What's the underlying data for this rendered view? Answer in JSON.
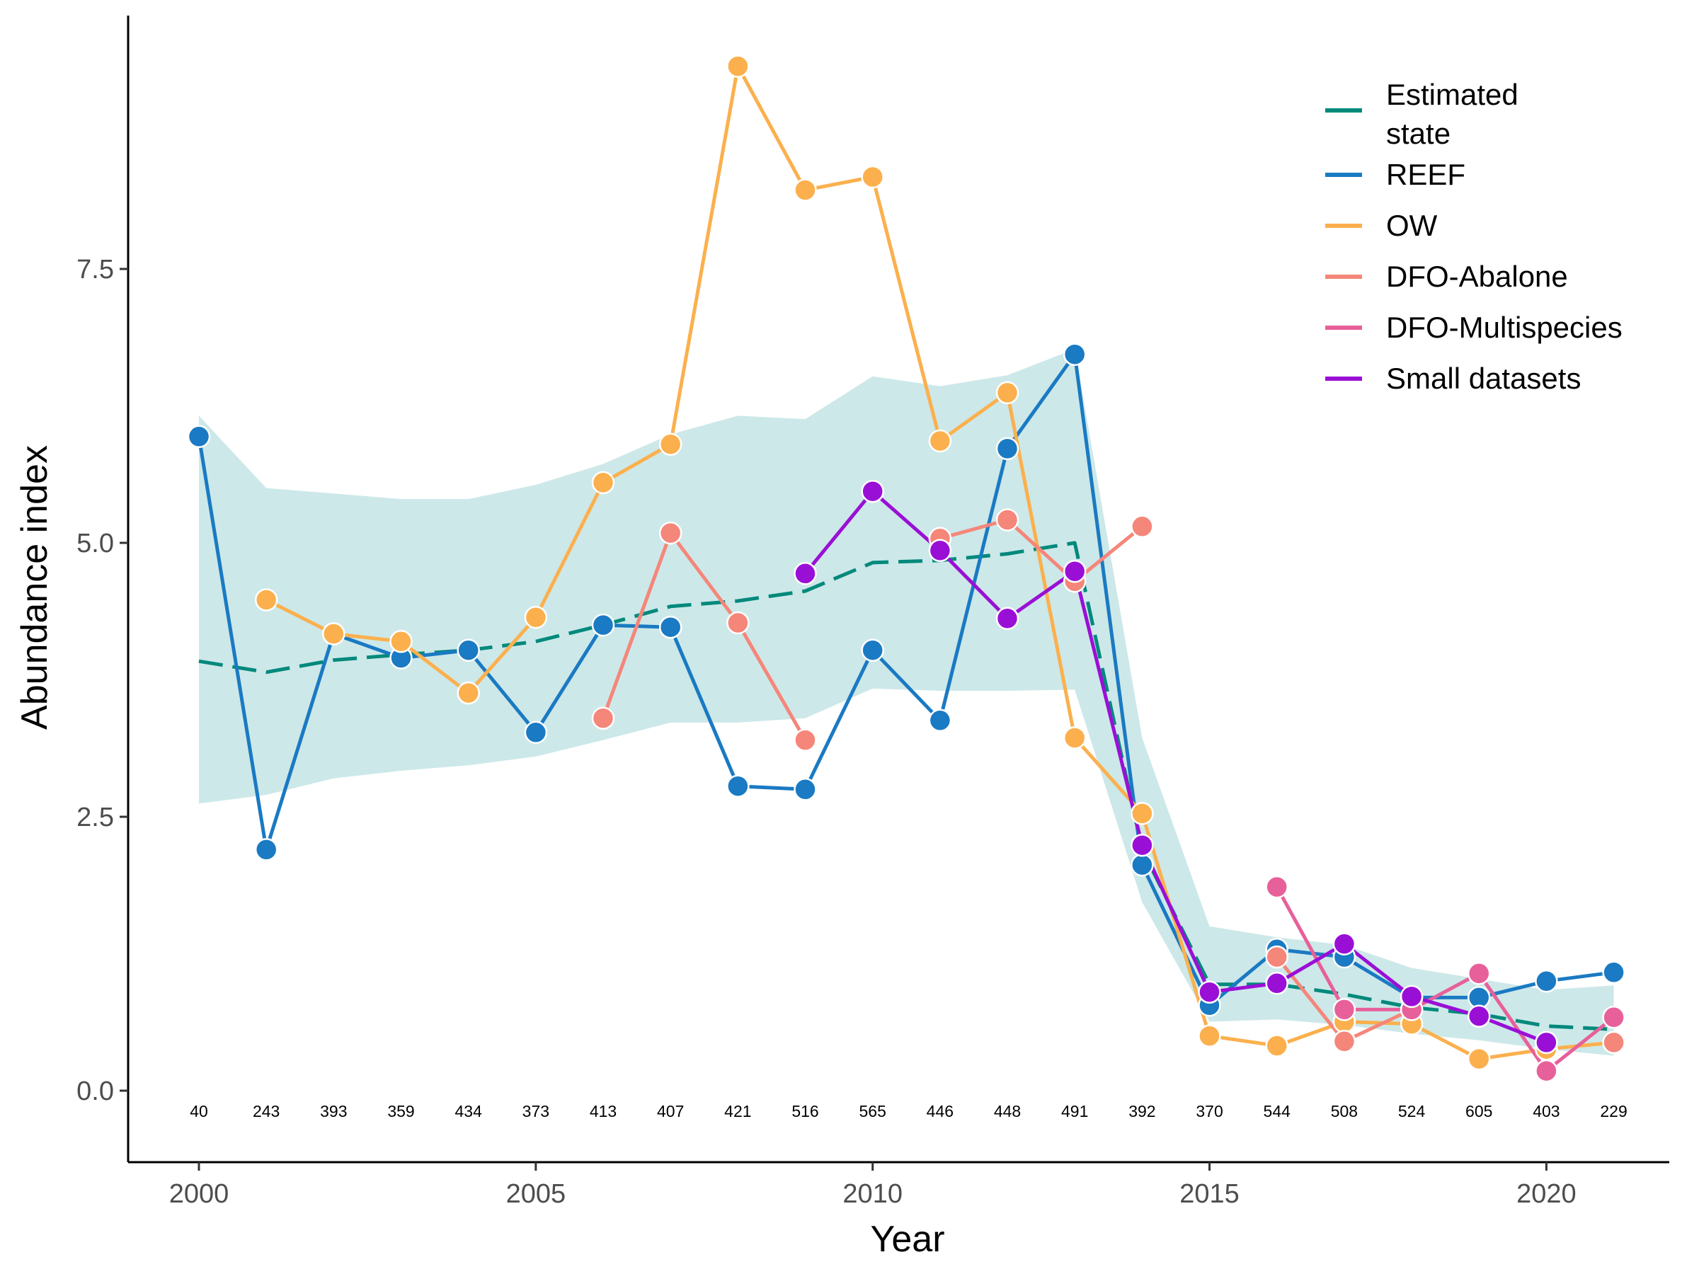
{
  "chart_data": {
    "type": "line",
    "title": "",
    "xlabel": "Year",
    "ylabel": "Abundance index",
    "xlim": [
      1999,
      2022
    ],
    "ylim": [
      -0.66,
      9.8
    ],
    "xticks": [
      2000,
      2005,
      2010,
      2015,
      2020
    ],
    "xtick_labels": [
      "2000",
      "2005",
      "2010",
      "2015",
      "2020"
    ],
    "yticks": [
      0,
      2.5,
      5,
      7.5
    ],
    "ytick_labels": [
      "0.0",
      "2.5",
      "5.0",
      "7.5"
    ],
    "grid": false,
    "legend_position": "top-right",
    "years": [
      2000,
      2001,
      2002,
      2003,
      2004,
      2005,
      2006,
      2007,
      2008,
      2009,
      2010,
      2011,
      2012,
      2013,
      2014,
      2015,
      2016,
      2017,
      2018,
      2019,
      2020,
      2021
    ],
    "sample_counts": [
      "40",
      "243",
      "393",
      "359",
      "434",
      "373",
      "413",
      "407",
      "421",
      "516",
      "565",
      "446",
      "448",
      "491",
      "392",
      "370",
      "544",
      "508",
      "524",
      "605",
      "403",
      "229"
    ],
    "estimated_state": {
      "name": "Estimated state",
      "name_lines": [
        "Estimated",
        "state"
      ],
      "color": "#00897b",
      "ribbon_color": "#cde8e9",
      "mean": [
        3.92,
        3.82,
        3.93,
        3.98,
        4.02,
        4.1,
        4.25,
        4.42,
        4.47,
        4.56,
        4.82,
        4.84,
        4.9,
        5.0,
        2.2,
        0.97,
        0.97,
        0.88,
        0.76,
        0.7,
        0.59,
        0.56
      ],
      "lower": [
        2.62,
        2.7,
        2.85,
        2.92,
        2.97,
        3.05,
        3.2,
        3.36,
        3.36,
        3.4,
        3.67,
        3.65,
        3.65,
        3.66,
        1.72,
        0.63,
        0.65,
        0.6,
        0.52,
        0.46,
        0.38,
        0.32
      ],
      "upper": [
        6.16,
        5.5,
        5.45,
        5.4,
        5.4,
        5.53,
        5.72,
        5.99,
        6.16,
        6.13,
        6.52,
        6.43,
        6.53,
        6.77,
        3.22,
        1.5,
        1.4,
        1.33,
        1.12,
        1.02,
        0.92,
        0.96
      ]
    },
    "series": [
      {
        "name": "REEF",
        "color": "#1a7ac3",
        "x": [
          2000,
          2001,
          2002,
          2003,
          2004,
          2005,
          2006,
          2007,
          2008,
          2009,
          2010,
          2011,
          2012,
          2013,
          2014,
          2015,
          2016,
          2017,
          2018,
          2019,
          2020,
          2021
        ],
        "y": [
          5.97,
          2.2,
          4.17,
          3.95,
          4.02,
          3.27,
          4.25,
          4.23,
          2.78,
          2.75,
          4.02,
          3.38,
          5.86,
          6.72,
          2.06,
          0.78,
          1.29,
          1.22,
          0.85,
          0.85,
          1.0,
          1.08
        ]
      },
      {
        "name": "OW",
        "color": "#fbb04d",
        "x": [
          2001,
          2002,
          2003,
          2004,
          2005,
          2006,
          2007,
          2008,
          2009,
          2010,
          2011,
          2012,
          2013,
          2014,
          2015,
          2016,
          2017,
          2018,
          2019,
          2020,
          2021
        ],
        "y": [
          4.48,
          4.17,
          4.1,
          3.63,
          4.32,
          5.55,
          5.9,
          9.35,
          8.22,
          8.34,
          5.93,
          6.37,
          3.22,
          2.53,
          0.5,
          0.41,
          0.63,
          0.61,
          0.29,
          0.38,
          0.44
        ]
      },
      {
        "name": "DFO-Abalone",
        "color": "#f5867a",
        "x": [
          2006,
          2007,
          2008,
          2009,
          2011,
          2012,
          2013,
          2014,
          2016,
          2017,
          2018,
          2021
        ],
        "y": [
          3.4,
          5.09,
          4.27,
          3.2,
          5.04,
          5.21,
          4.65,
          5.15,
          1.22,
          0.45,
          0.74,
          0.44
        ],
        "segments": [
          [
            0,
            3
          ],
          [
            4,
            7
          ],
          [
            8,
            10
          ]
        ]
      },
      {
        "name": "DFO-Multispecies",
        "color": "#e7609a",
        "x": [
          2016,
          2017,
          2018,
          2019,
          2020,
          2021
        ],
        "y": [
          1.86,
          0.74,
          0.74,
          1.07,
          0.18,
          0.67
        ]
      },
      {
        "name": "Small datasets",
        "color": "#9a0fd6",
        "x": [
          2009,
          2010,
          2011,
          2012,
          2013,
          2014,
          2015,
          2016,
          2017,
          2018,
          2019,
          2020
        ],
        "y": [
          4.72,
          5.47,
          4.93,
          4.31,
          4.74,
          2.24,
          0.9,
          0.98,
          1.34,
          0.86,
          0.68,
          0.44
        ]
      }
    ]
  }
}
